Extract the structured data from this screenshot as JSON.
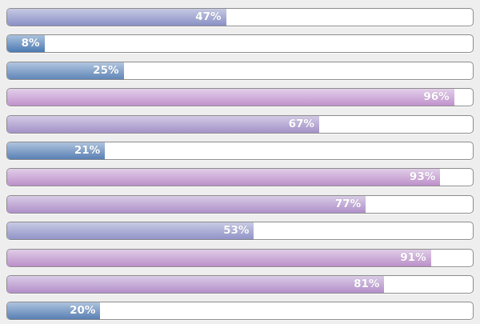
{
  "page": {
    "background_color": "#eeeeee",
    "track_background": "#ffffff",
    "track_border_color": "#8c8c8c",
    "label_text_color": "#ffffff"
  },
  "bars": [
    {
      "value": 47,
      "label": "47%",
      "color_top": "#c5c9e3",
      "color_bottom": "#8a91c6"
    },
    {
      "value": 8,
      "label": "8%",
      "color_top": "#aac1dd",
      "color_bottom": "#4d7ab3"
    },
    {
      "value": 25,
      "label": "25%",
      "color_top": "#b1c5e0",
      "color_bottom": "#6186b8"
    },
    {
      "value": 96,
      "label": "96%",
      "color_top": "#e2cfe9",
      "color_bottom": "#c192cd"
    },
    {
      "value": 67,
      "label": "67%",
      "color_top": "#d2c9e5",
      "color_bottom": "#a492c8"
    },
    {
      "value": 21,
      "label": "21%",
      "color_top": "#aec3de",
      "color_bottom": "#5a80b4"
    },
    {
      "value": 93,
      "label": "93%",
      "color_top": "#e0cde8",
      "color_bottom": "#bd90ca"
    },
    {
      "value": 77,
      "label": "77%",
      "color_top": "#d8cbe6",
      "color_bottom": "#af90c9"
    },
    {
      "value": 53,
      "label": "53%",
      "color_top": "#c8cae4",
      "color_bottom": "#9194c7"
    },
    {
      "value": 91,
      "label": "91%",
      "color_top": "#dfcce7",
      "color_bottom": "#bb90c9"
    },
    {
      "value": 81,
      "label": "81%",
      "color_top": "#dacbe7",
      "color_bottom": "#b38fc9"
    },
    {
      "value": 20,
      "label": "20%",
      "color_top": "#adc3de",
      "color_bottom": "#597fb3"
    }
  ]
}
